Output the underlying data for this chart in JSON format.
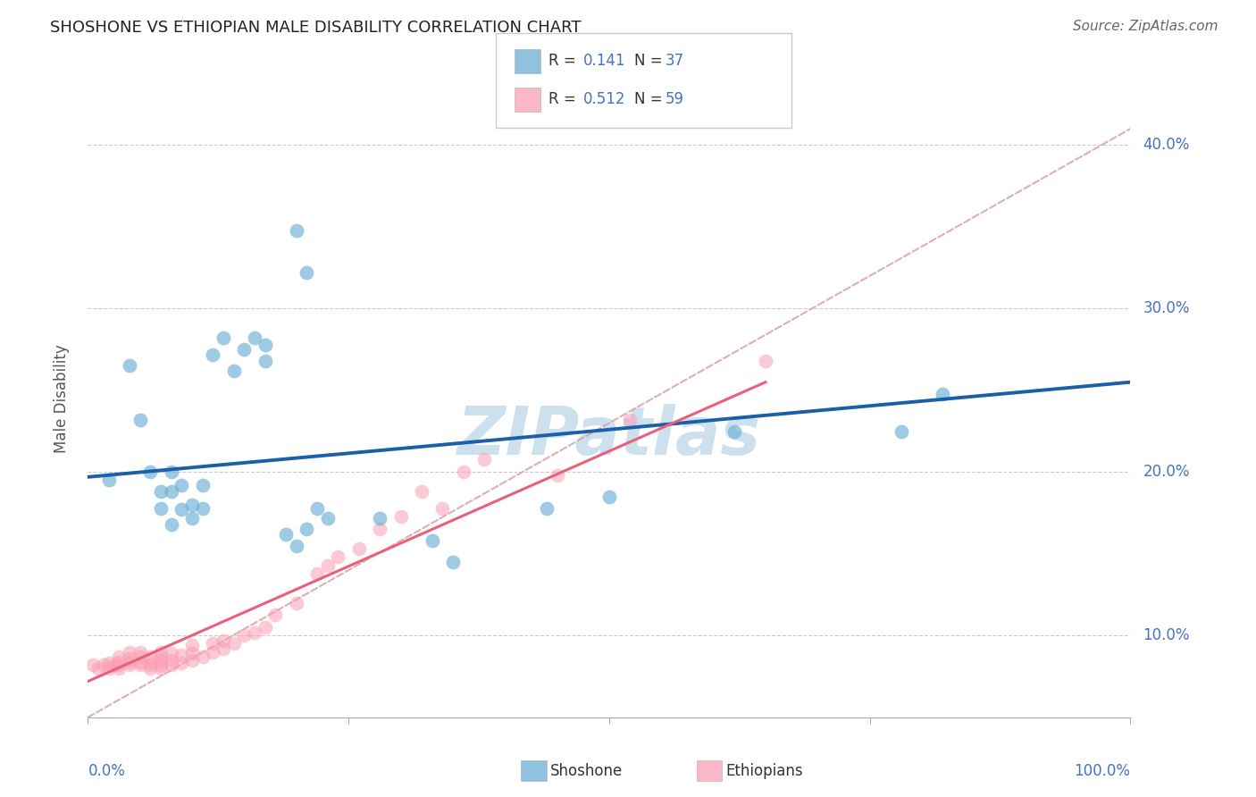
{
  "title": "SHOSHONE VS ETHIOPIAN MALE DISABILITY CORRELATION CHART",
  "source": "Source: ZipAtlas.com",
  "ylabel": "Male Disability",
  "ytick_labels": [
    "10.0%",
    "20.0%",
    "30.0%",
    "40.0%"
  ],
  "ytick_values": [
    0.1,
    0.2,
    0.3,
    0.4
  ],
  "xlim": [
    0.0,
    1.0
  ],
  "ylim": [
    0.05,
    0.44
  ],
  "legend_r1": "0.141",
  "legend_n1": "37",
  "legend_r2": "0.512",
  "legend_n2": "59",
  "shoshone_color": "#6baed6",
  "ethiopian_color": "#fa9fb5",
  "shoshone_line_color": "#1a5fa8",
  "ethiopian_line_color": "#e8607a",
  "diagonal_color": "#d9a0a8",
  "value_color": "#4472c4",
  "watermark_color": "#cde0ee",
  "shoshone_line_x0": 0.0,
  "shoshone_line_y0": 0.197,
  "shoshone_line_x1": 1.0,
  "shoshone_line_y1": 0.255,
  "ethiopian_line_x0": 0.0,
  "ethiopian_line_y0": 0.072,
  "ethiopian_line_x1": 0.65,
  "ethiopian_line_y1": 0.255,
  "shoshone_x": [
    0.02,
    0.04,
    0.05,
    0.06,
    0.07,
    0.07,
    0.08,
    0.08,
    0.08,
    0.09,
    0.09,
    0.1,
    0.1,
    0.11,
    0.11,
    0.12,
    0.13,
    0.14,
    0.15,
    0.16,
    0.17,
    0.17,
    0.19,
    0.2,
    0.21,
    0.22,
    0.23,
    0.28,
    0.33,
    0.44,
    0.62,
    0.78,
    0.82,
    0.2,
    0.21,
    0.35,
    0.5
  ],
  "shoshone_y": [
    0.195,
    0.265,
    0.232,
    0.2,
    0.178,
    0.188,
    0.168,
    0.188,
    0.2,
    0.177,
    0.192,
    0.172,
    0.18,
    0.178,
    0.192,
    0.272,
    0.282,
    0.262,
    0.275,
    0.282,
    0.268,
    0.278,
    0.162,
    0.348,
    0.322,
    0.178,
    0.172,
    0.172,
    0.158,
    0.178,
    0.225,
    0.225,
    0.248,
    0.155,
    0.165,
    0.145,
    0.185
  ],
  "ethiopian_x": [
    0.005,
    0.01,
    0.015,
    0.02,
    0.02,
    0.025,
    0.03,
    0.03,
    0.03,
    0.03,
    0.04,
    0.04,
    0.04,
    0.04,
    0.05,
    0.05,
    0.05,
    0.05,
    0.06,
    0.06,
    0.06,
    0.06,
    0.07,
    0.07,
    0.07,
    0.07,
    0.07,
    0.08,
    0.08,
    0.08,
    0.09,
    0.09,
    0.1,
    0.1,
    0.1,
    0.11,
    0.12,
    0.12,
    0.13,
    0.13,
    0.14,
    0.15,
    0.16,
    0.17,
    0.18,
    0.2,
    0.22,
    0.23,
    0.24,
    0.26,
    0.28,
    0.3,
    0.32,
    0.34,
    0.38,
    0.45,
    0.52,
    0.65,
    0.36
  ],
  "ethiopian_y": [
    0.082,
    0.08,
    0.082,
    0.08,
    0.083,
    0.082,
    0.08,
    0.082,
    0.084,
    0.087,
    0.082,
    0.084,
    0.086,
    0.09,
    0.082,
    0.084,
    0.087,
    0.09,
    0.08,
    0.082,
    0.084,
    0.087,
    0.08,
    0.082,
    0.085,
    0.087,
    0.09,
    0.082,
    0.085,
    0.089,
    0.083,
    0.088,
    0.085,
    0.089,
    0.094,
    0.087,
    0.09,
    0.095,
    0.092,
    0.097,
    0.095,
    0.1,
    0.102,
    0.105,
    0.113,
    0.12,
    0.138,
    0.143,
    0.148,
    0.153,
    0.165,
    0.173,
    0.188,
    0.178,
    0.208,
    0.198,
    0.232,
    0.268,
    0.2
  ]
}
